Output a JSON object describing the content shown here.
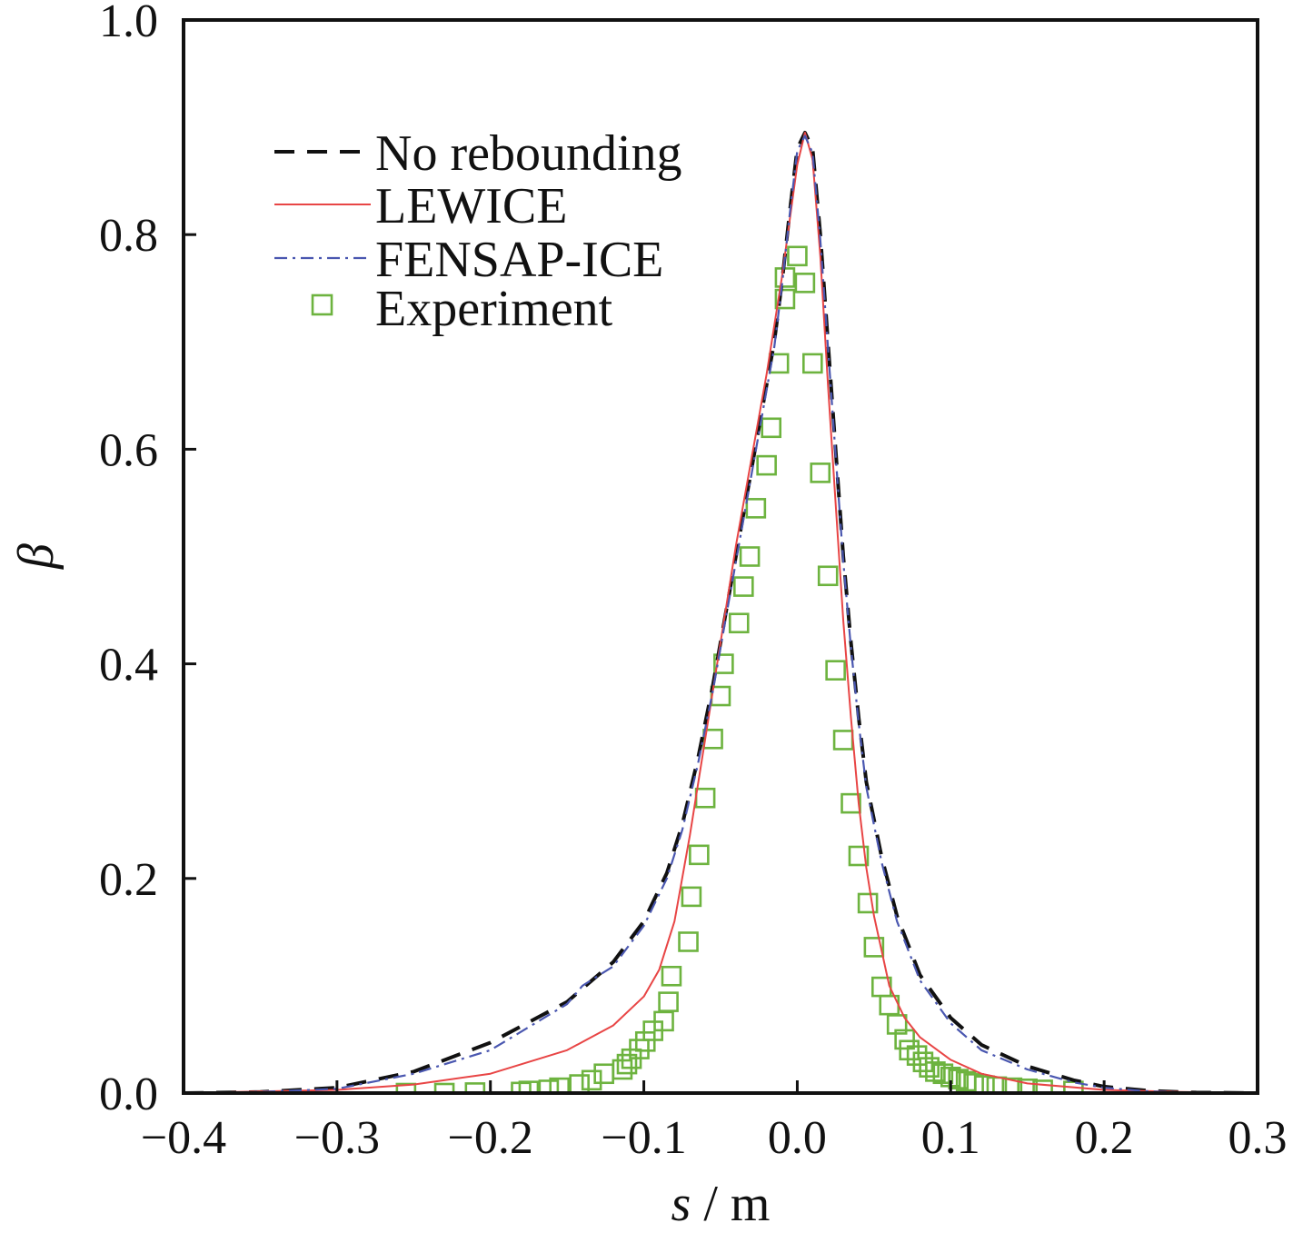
{
  "chart_data": {
    "type": "line",
    "xlabel": {
      "var": "s",
      "unit": " / m"
    },
    "ylabel": "β",
    "xlim": [
      -0.4,
      0.3
    ],
    "ylim": [
      0.0,
      1.0
    ],
    "xticks": [
      -0.4,
      -0.3,
      -0.2,
      -0.1,
      0.0,
      0.1,
      0.2,
      0.3
    ],
    "xtick_labels": [
      "−0.4",
      "−0.3",
      "−0.2",
      "−0.1",
      "0.0",
      "0.1",
      "0.2",
      "0.3"
    ],
    "yticks": [
      0.0,
      0.2,
      0.4,
      0.6,
      0.8,
      1.0
    ],
    "ytick_labels": [
      "0.0",
      "0.2",
      "0.4",
      "0.6",
      "0.8",
      "1.0"
    ],
    "grid": false,
    "legend_position": "top-left",
    "series": [
      {
        "name": "No rebounding",
        "style": "dashed",
        "color": "#111111",
        "x": [
          -0.4,
          -0.35,
          -0.3,
          -0.25,
          -0.2,
          -0.15,
          -0.12,
          -0.1,
          -0.085,
          -0.075,
          -0.065,
          -0.055,
          -0.045,
          -0.035,
          -0.025,
          -0.015,
          -0.01,
          -0.005,
          0.0,
          0.005,
          0.01,
          0.015,
          0.02,
          0.025,
          0.03,
          0.035,
          0.04,
          0.045,
          0.055,
          0.065,
          0.08,
          0.1,
          0.12,
          0.15,
          0.18,
          0.2,
          0.23,
          0.26,
          0.3
        ],
        "y": [
          0.0,
          0.001,
          0.005,
          0.02,
          0.047,
          0.085,
          0.122,
          0.16,
          0.205,
          0.25,
          0.31,
          0.38,
          0.46,
          0.54,
          0.62,
          0.7,
          0.755,
          0.82,
          0.88,
          0.895,
          0.88,
          0.8,
          0.7,
          0.6,
          0.5,
          0.42,
          0.35,
          0.29,
          0.22,
          0.165,
          0.11,
          0.07,
          0.045,
          0.025,
          0.012,
          0.006,
          0.002,
          0.0005,
          0.0
        ]
      },
      {
        "name": "LEWICE",
        "style": "solid",
        "color": "#e84545",
        "x": [
          -0.4,
          -0.3,
          -0.25,
          -0.2,
          -0.15,
          -0.12,
          -0.1,
          -0.09,
          -0.08,
          -0.07,
          -0.06,
          -0.05,
          -0.04,
          -0.03,
          -0.02,
          -0.01,
          0.0,
          0.005,
          0.01,
          0.015,
          0.02,
          0.025,
          0.03,
          0.035,
          0.04,
          0.045,
          0.05,
          0.06,
          0.07,
          0.08,
          0.1,
          0.12,
          0.15,
          0.2,
          0.25,
          0.3
        ],
        "y": [
          0.0,
          0.003,
          0.008,
          0.018,
          0.04,
          0.063,
          0.09,
          0.115,
          0.16,
          0.24,
          0.33,
          0.42,
          0.51,
          0.59,
          0.67,
          0.76,
          0.865,
          0.895,
          0.87,
          0.78,
          0.66,
          0.55,
          0.44,
          0.35,
          0.27,
          0.21,
          0.165,
          0.1,
          0.07,
          0.052,
          0.031,
          0.018,
          0.009,
          0.003,
          0.001,
          0.0
        ]
      },
      {
        "name": "FENSAP-ICE",
        "style": "dashdot",
        "color": "#4a57b0",
        "x": [
          -0.4,
          -0.35,
          -0.3,
          -0.25,
          -0.2,
          -0.15,
          -0.14,
          -0.12,
          -0.1,
          -0.085,
          -0.075,
          -0.065,
          -0.055,
          -0.045,
          -0.035,
          -0.025,
          -0.015,
          -0.01,
          -0.005,
          0.0,
          0.005,
          0.01,
          0.015,
          0.02,
          0.025,
          0.03,
          0.035,
          0.04,
          0.045,
          0.055,
          0.065,
          0.08,
          0.1,
          0.12,
          0.15,
          0.18,
          0.2,
          0.23,
          0.26,
          0.3
        ],
        "y": [
          0.0,
          0.001,
          0.004,
          0.018,
          0.04,
          0.083,
          0.1,
          0.118,
          0.156,
          0.2,
          0.245,
          0.305,
          0.375,
          0.455,
          0.535,
          0.615,
          0.695,
          0.752,
          0.818,
          0.878,
          0.892,
          0.876,
          0.795,
          0.695,
          0.595,
          0.495,
          0.415,
          0.345,
          0.285,
          0.215,
          0.16,
          0.105,
          0.065,
          0.04,
          0.022,
          0.01,
          0.005,
          0.0015,
          0.0003,
          0.0
        ]
      },
      {
        "name": "Experiment",
        "style": "markers",
        "color": "#6db33f",
        "marker": "square",
        "x": [
          -0.008,
          -0.012,
          -0.017,
          -0.02,
          -0.027,
          -0.031,
          -0.035,
          -0.038,
          -0.048,
          -0.05,
          -0.055,
          -0.06,
          -0.064,
          -0.069,
          -0.071,
          -0.082,
          -0.084,
          -0.087,
          -0.094,
          -0.099,
          -0.103,
          -0.108,
          -0.111,
          -0.114,
          -0.126,
          -0.134,
          -0.142,
          -0.155,
          -0.162,
          -0.175,
          -0.18,
          -0.21,
          -0.23,
          -0.255,
          -0.008,
          0.0,
          0.005,
          0.01,
          0.015,
          0.02,
          0.025,
          0.03,
          0.035,
          0.04,
          0.046,
          0.05,
          0.055,
          0.06,
          0.065,
          0.07,
          0.073,
          0.078,
          0.082,
          0.086,
          0.09,
          0.095,
          0.1,
          0.105,
          0.11,
          0.115,
          0.122,
          0.13,
          0.14,
          0.15,
          0.16,
          0.18
        ],
        "y": [
          0.74,
          0.68,
          0.62,
          0.585,
          0.545,
          0.5,
          0.472,
          0.438,
          0.4,
          0.37,
          0.33,
          0.275,
          0.222,
          0.183,
          0.141,
          0.109,
          0.085,
          0.067,
          0.058,
          0.048,
          0.041,
          0.032,
          0.027,
          0.022,
          0.018,
          0.012,
          0.008,
          0.005,
          0.003,
          0.002,
          0.001,
          0.0005,
          0.0,
          0.0,
          0.76,
          0.78,
          0.755,
          0.68,
          0.578,
          0.482,
          0.394,
          0.329,
          0.27,
          0.221,
          0.177,
          0.136,
          0.099,
          0.082,
          0.064,
          0.05,
          0.04,
          0.035,
          0.029,
          0.024,
          0.02,
          0.018,
          0.015,
          0.013,
          0.011,
          0.009,
          0.007,
          0.006,
          0.005,
          0.004,
          0.003,
          0.002
        ]
      }
    ]
  }
}
